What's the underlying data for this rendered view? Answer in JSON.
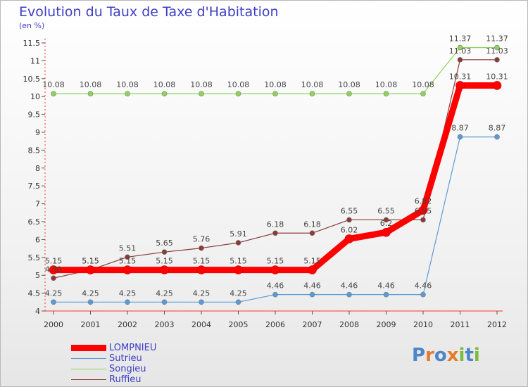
{
  "title": "Evolution du Taux de Taxe d'Habitation",
  "unit_label": "(en %)",
  "logo": {
    "text": "Proxiti",
    "letters": [
      "P",
      "r",
      "o",
      "x",
      "i",
      "t",
      "i"
    ],
    "colors": [
      "#4a86c8",
      "#e37b2b",
      "#4a86c8",
      "#e37b2b",
      "#7cbc3c",
      "#4a86c8",
      "#7cbc3c"
    ]
  },
  "chart_data": {
    "type": "line",
    "title": "Evolution du Taux de Taxe d'Habitation",
    "ylabel": "(en %)",
    "xlabel": "",
    "x": [
      "2000",
      "2001",
      "2002",
      "2003",
      "2004",
      "2005",
      "2006",
      "2007",
      "2008",
      "2009",
      "2010",
      "2011",
      "2012"
    ],
    "ylim": [
      4,
      11.5
    ],
    "yticks": [
      "4",
      "4.5",
      "5",
      "5.5",
      "6",
      "6.5",
      "7",
      "7.5",
      "8",
      "8.5",
      "9",
      "9.5",
      "10",
      "10.5",
      "11",
      "11.5"
    ],
    "grid": false,
    "legend_position": "bottom-left",
    "series": [
      {
        "name": "LOMPNIEU",
        "color": "#ff0000",
        "values": [
          5.15,
          5.15,
          5.15,
          5.15,
          5.15,
          5.15,
          5.15,
          5.15,
          6.02,
          6.2,
          6.82,
          10.31,
          10.31
        ],
        "labels": [
          "5.15",
          "5.15",
          "5.15",
          "5.15",
          "5.15",
          "5.15",
          "5.15",
          "5.15",
          "6.02",
          "6.2",
          "6.82",
          "10.31",
          "10.31"
        ]
      },
      {
        "name": "Sutrieu",
        "color": "#5b9bd5",
        "values": [
          4.25,
          4.25,
          4.25,
          4.25,
          4.25,
          4.25,
          4.46,
          4.46,
          4.46,
          4.46,
          4.46,
          8.87,
          8.87
        ],
        "labels": [
          "4.25",
          "4.25",
          "4.25",
          "4.25",
          "4.25",
          "4.25",
          "4.46",
          "4.46",
          "4.46",
          "4.46",
          "4.46",
          "8.87",
          "8.87"
        ]
      },
      {
        "name": "Songieu",
        "color": "#8fd45a",
        "values": [
          10.08,
          10.08,
          10.08,
          10.08,
          10.08,
          10.08,
          10.08,
          10.08,
          10.08,
          10.08,
          10.08,
          11.37,
          11.37
        ],
        "labels": [
          "10.08",
          "10.08",
          "10.08",
          "10.08",
          "10.08",
          "10.08",
          "10.08",
          "10.08",
          "10.08",
          "10.08",
          "10.08",
          "11.37",
          "11.37"
        ]
      },
      {
        "name": "Ruffieu",
        "color": "#8b3a3a",
        "values": [
          4.92,
          5.15,
          5.51,
          5.65,
          5.76,
          5.91,
          6.18,
          6.18,
          6.55,
          6.55,
          6.55,
          11.03,
          11.03
        ],
        "labels": [
          "4.92",
          "5.15",
          "5.51",
          "5.65",
          "5.76",
          "5.91",
          "6.18",
          "6.18",
          "6.55",
          "6.55",
          "6.55",
          "11.03",
          "11.03"
        ]
      }
    ]
  }
}
